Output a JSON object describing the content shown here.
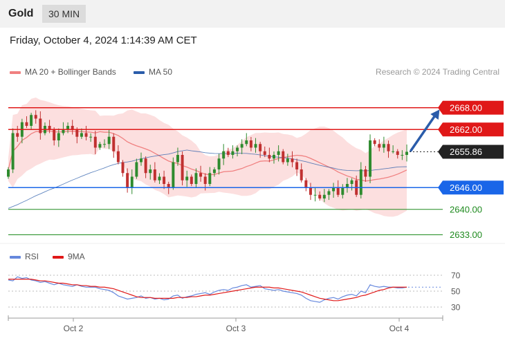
{
  "header": {
    "title": "Gold",
    "timeframe": "30 MIN"
  },
  "datetime": "Friday, October 4, 2024 1:14:39 AM CET",
  "legend": {
    "ma20": {
      "label": "MA 20 + Bollinger Bands",
      "color": "#f08080"
    },
    "ma50": {
      "label": "MA 50",
      "color": "#2a5caa"
    },
    "credit": "Research © 2024 Trading Central"
  },
  "rsi_legend": {
    "rsi": {
      "label": "RSI",
      "color": "#6688dd"
    },
    "ma9": {
      "label": "9MA",
      "color": "#e01818"
    }
  },
  "chart_data": [
    {
      "type": "candlestick",
      "instrument": "Gold",
      "timeframe": "30 MIN",
      "x_ticks": [
        "Oct 2",
        "Oct 3",
        "Oct 4"
      ],
      "y_range": [
        2631,
        2675
      ],
      "current_price": "2655.86",
      "levels": [
        {
          "label": "2668.00",
          "value": 2668.0,
          "kind": "resistance",
          "color": "#e01818",
          "line": "solid",
          "boxed": true
        },
        {
          "label": "2662.00",
          "value": 2662.0,
          "kind": "resistance",
          "color": "#e01818",
          "line": "solid",
          "boxed": true
        },
        {
          "label": "2655.86",
          "value": 2655.86,
          "kind": "last",
          "color": "#222222",
          "line": "dotted",
          "boxed": true
        },
        {
          "label": "2646.00",
          "value": 2646.0,
          "kind": "support",
          "color": "#1a66e8",
          "line": "solid",
          "boxed": true
        },
        {
          "label": "2640.00",
          "value": 2640.0,
          "kind": "support",
          "color": "#1e8a1e",
          "line": "solid",
          "boxed": false
        },
        {
          "label": "2633.00",
          "value": 2633.0,
          "kind": "support",
          "color": "#1e8a1e",
          "line": "solid",
          "boxed": false
        }
      ],
      "projection": {
        "from": 2656.2,
        "to": 2667.7,
        "color": "#2a5caa"
      },
      "close_series": [
        2651,
        2661,
        2660,
        2664,
        2663,
        2666,
        2665,
        2661,
        2663,
        2662,
        2659,
        2661,
        2662,
        2663,
        2662,
        2660,
        2661,
        2660,
        2660,
        2657,
        2658,
        2658,
        2660,
        2656,
        2653,
        2650,
        2646,
        2649,
        2653,
        2654,
        2650,
        2651,
        2648,
        2649,
        2647,
        2646,
        2653,
        2655,
        2648,
        2649,
        2647,
        2650,
        2649,
        2647,
        2650,
        2651,
        2654,
        2656,
        2655,
        2656,
        2657,
        2658,
        2659,
        2657,
        2658,
        2656,
        2655,
        2654,
        2655,
        2656,
        2653,
        2654,
        2653,
        2651,
        2648,
        2646,
        2644,
        2644,
        2643,
        2644,
        2645,
        2646,
        2644,
        2646,
        2647,
        2648,
        2644,
        2651,
        2649,
        2659,
        2658,
        2657,
        2658,
        2656,
        2656,
        2655,
        2655,
        2655.86
      ]
    },
    {
      "type": "line",
      "title": "RSI",
      "y_ticks": [
        70,
        50,
        30
      ],
      "y_range": [
        25,
        80
      ],
      "series": [
        {
          "name": "RSI",
          "color": "#6688dd",
          "values": [
            64,
            63,
            68,
            66,
            67,
            64,
            63,
            61,
            62,
            60,
            58,
            60,
            58,
            57,
            56,
            58,
            56,
            55,
            55,
            55,
            53,
            52,
            51,
            48,
            44,
            42,
            40,
            41,
            42,
            44,
            41,
            42,
            40,
            41,
            39,
            40,
            44,
            45,
            41,
            43,
            44,
            46,
            47,
            48,
            46,
            49,
            51,
            52,
            51,
            54,
            55,
            57,
            58,
            55,
            56,
            57,
            53,
            52,
            51,
            52,
            50,
            49,
            48,
            47,
            45,
            41,
            38,
            37,
            36,
            39,
            41,
            42,
            40,
            43,
            45,
            46,
            44,
            50,
            48,
            58,
            56,
            55,
            56,
            55,
            55,
            54,
            54,
            55
          ]
        },
        {
          "name": "9MA",
          "color": "#e01818",
          "values": [
            65,
            65,
            65,
            65,
            65,
            65,
            64,
            63,
            63,
            62,
            61,
            60,
            60,
            59,
            58,
            58,
            57,
            57,
            56,
            56,
            55,
            55,
            54,
            53,
            51,
            49,
            47,
            45,
            43,
            42,
            42,
            42,
            41,
            41,
            41,
            41,
            41,
            42,
            42,
            42,
            43,
            43,
            44,
            45,
            45,
            46,
            47,
            48,
            49,
            50,
            51,
            52,
            53,
            54,
            55,
            55,
            55,
            55,
            54,
            54,
            53,
            52,
            51,
            50,
            49,
            47,
            45,
            43,
            41,
            40,
            39,
            38,
            38,
            39,
            40,
            41,
            42,
            44,
            45,
            47,
            49,
            51,
            52,
            54,
            55,
            55,
            55,
            55
          ]
        }
      ]
    }
  ]
}
